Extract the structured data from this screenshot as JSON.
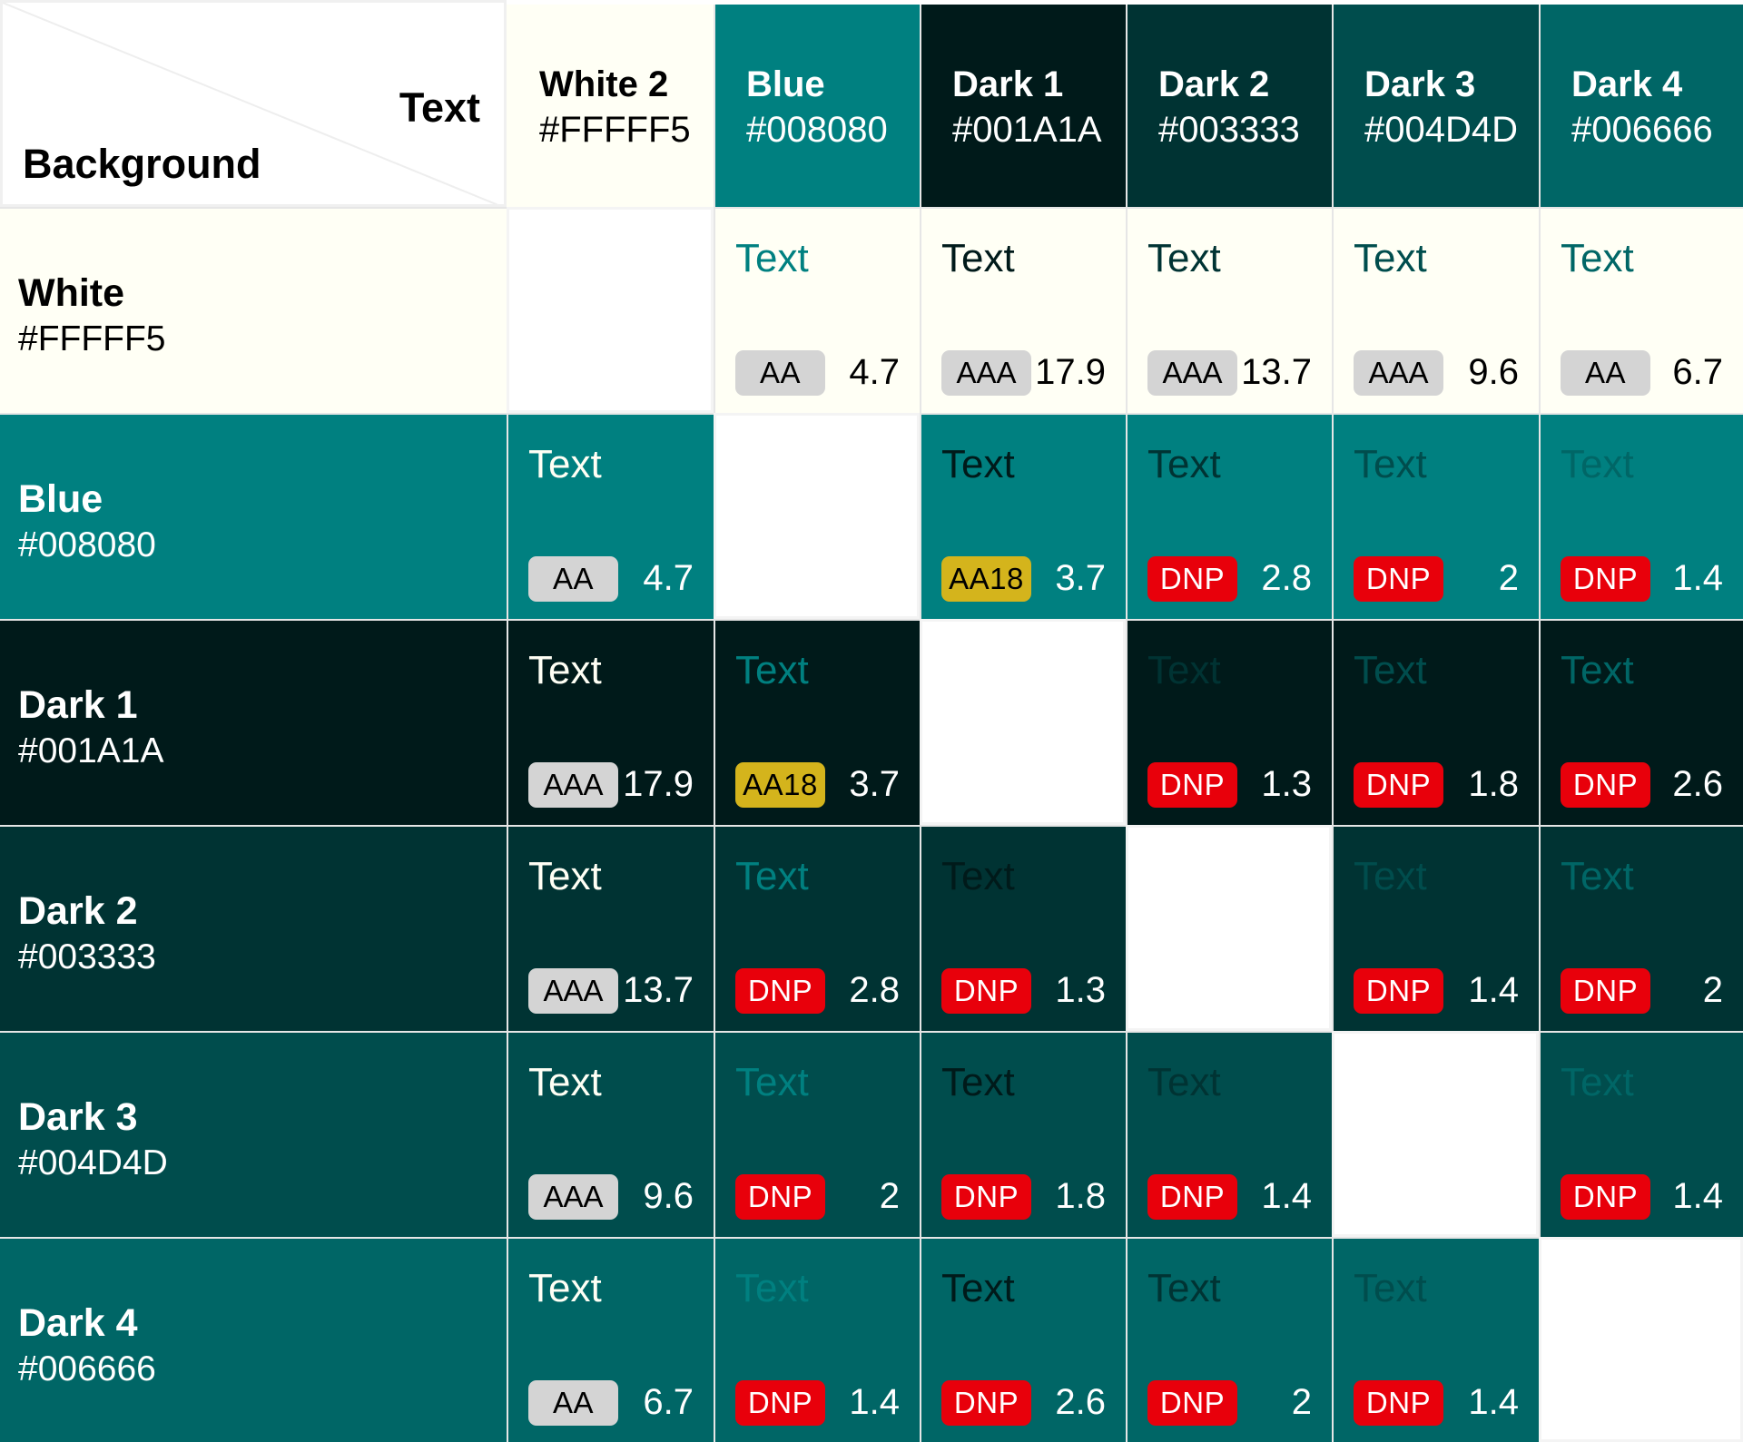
{
  "corner": {
    "text_label": "Text",
    "background_label": "Background"
  },
  "colors": [
    {
      "name": "White 2",
      "row_name": "White",
      "hex": "#FFFFF5"
    },
    {
      "name": "Blue",
      "row_name": "Blue",
      "hex": "#008080"
    },
    {
      "name": "Dark 1",
      "row_name": "Dark 1",
      "hex": "#001A1A"
    },
    {
      "name": "Dark 2",
      "row_name": "Dark 2",
      "hex": "#003333"
    },
    {
      "name": "Dark 3",
      "row_name": "Dark 3",
      "hex": "#004D4D"
    },
    {
      "name": "Dark 4",
      "row_name": "Dark 4",
      "hex": "#006666"
    }
  ],
  "sample_text": "Text",
  "rating_colors": {
    "AA": {
      "bg": "#d4d4d4",
      "fg": "#000000"
    },
    "AAA": {
      "bg": "#d4d4d4",
      "fg": "#000000"
    },
    "AA18": {
      "bg": "#d4b41c",
      "fg": "#000000"
    },
    "DNP": {
      "bg": "#e8000b",
      "fg": "#ffffff"
    }
  },
  "matrix": [
    [
      null,
      {
        "rating": "AA",
        "ratio": "4.7"
      },
      {
        "rating": "AAA",
        "ratio": "17.9"
      },
      {
        "rating": "AAA",
        "ratio": "13.7"
      },
      {
        "rating": "AAA",
        "ratio": "9.6"
      },
      {
        "rating": "AA",
        "ratio": "6.7"
      }
    ],
    [
      {
        "rating": "AA",
        "ratio": "4.7"
      },
      null,
      {
        "rating": "AA18",
        "ratio": "3.7"
      },
      {
        "rating": "DNP",
        "ratio": "2.8"
      },
      {
        "rating": "DNP",
        "ratio": "2"
      },
      {
        "rating": "DNP",
        "ratio": "1.4"
      }
    ],
    [
      {
        "rating": "AAA",
        "ratio": "17.9"
      },
      {
        "rating": "AA18",
        "ratio": "3.7"
      },
      null,
      {
        "rating": "DNP",
        "ratio": "1.3"
      },
      {
        "rating": "DNP",
        "ratio": "1.8"
      },
      {
        "rating": "DNP",
        "ratio": "2.6"
      }
    ],
    [
      {
        "rating": "AAA",
        "ratio": "13.7"
      },
      {
        "rating": "DNP",
        "ratio": "2.8"
      },
      {
        "rating": "DNP",
        "ratio": "1.3"
      },
      null,
      {
        "rating": "DNP",
        "ratio": "1.4"
      },
      {
        "rating": "DNP",
        "ratio": "2"
      }
    ],
    [
      {
        "rating": "AAA",
        "ratio": "9.6"
      },
      {
        "rating": "DNP",
        "ratio": "2"
      },
      {
        "rating": "DNP",
        "ratio": "1.8"
      },
      {
        "rating": "DNP",
        "ratio": "1.4"
      },
      null,
      {
        "rating": "DNP",
        "ratio": "1.4"
      }
    ],
    [
      {
        "rating": "AA",
        "ratio": "6.7"
      },
      {
        "rating": "DNP",
        "ratio": "1.4"
      },
      {
        "rating": "DNP",
        "ratio": "2.6"
      },
      {
        "rating": "DNP",
        "ratio": "2"
      },
      {
        "rating": "DNP",
        "ratio": "1.4"
      },
      null
    ]
  ]
}
